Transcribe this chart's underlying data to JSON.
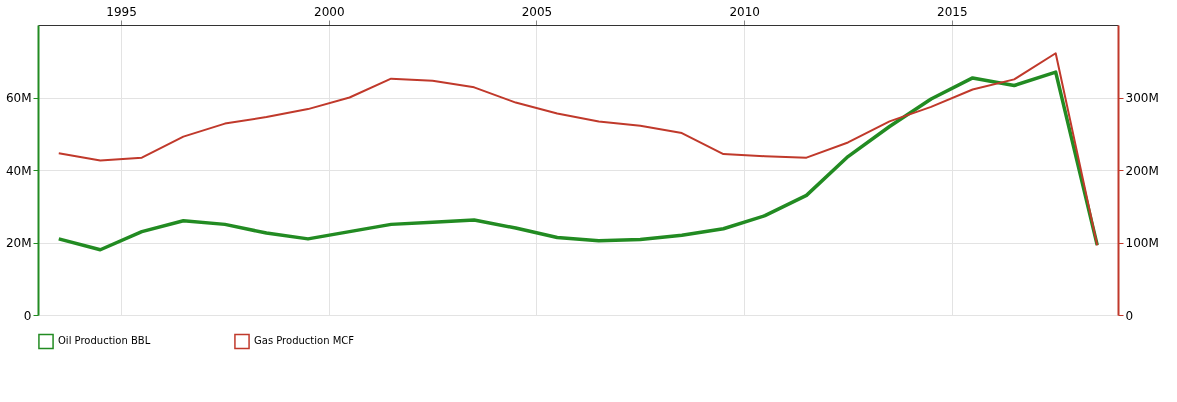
{
  "chart_data": {
    "type": "line",
    "x": [
      1993.5,
      1994.5,
      1995.5,
      1996.5,
      1997.5,
      1998.5,
      1999.5,
      2000.5,
      2001.5,
      2002.5,
      2003.5,
      2004.5,
      2005.5,
      2006.5,
      2007.5,
      2008.5,
      2009.5,
      2010.5,
      2011.5,
      2012.5,
      2013.5,
      2014.5,
      2015.5,
      2016.5,
      2017.5,
      2018.5
    ],
    "series": [
      {
        "name": "Oil Production BBL",
        "color": "#228b22",
        "values": [
          21,
          18,
          23,
          26,
          25,
          22.6,
          21,
          23,
          25,
          25.6,
          26.2,
          24,
          21.4,
          20.5,
          20.8,
          22,
          23.8,
          27.4,
          33,
          43.7,
          52,
          59.6,
          65.4,
          63.3,
          67,
          19.3
        ]
      },
      {
        "name": "Gas Production MCF",
        "color": "#c0392b",
        "axis": "y2",
        "values": [
          223,
          213,
          217,
          246,
          264,
          273,
          284,
          300,
          326,
          323,
          314,
          293,
          278,
          267,
          261,
          251,
          222,
          219,
          217,
          238,
          267,
          287,
          311,
          325,
          361,
          96
        ]
      }
    ],
    "xlim": [
      1993,
      2019
    ],
    "xticks": [
      1995,
      2000,
      2005,
      2010,
      2015
    ],
    "ylim": [
      0,
      80
    ],
    "yticks": [
      {
        "value": 0,
        "label": "0"
      },
      {
        "value": 20,
        "label": "20M"
      },
      {
        "value": 40,
        "label": "40M"
      },
      {
        "value": 60,
        "label": "60M"
      }
    ],
    "y2lim": [
      0,
      400
    ],
    "y2ticks": [
      {
        "value": 0,
        "label": "0"
      },
      {
        "value": 100,
        "label": "100M"
      },
      {
        "value": 200,
        "label": "200M"
      },
      {
        "value": 300,
        "label": "300M"
      }
    ],
    "grid": true,
    "legend": "bottom left",
    "marker": "none",
    "line_style": "solid"
  }
}
